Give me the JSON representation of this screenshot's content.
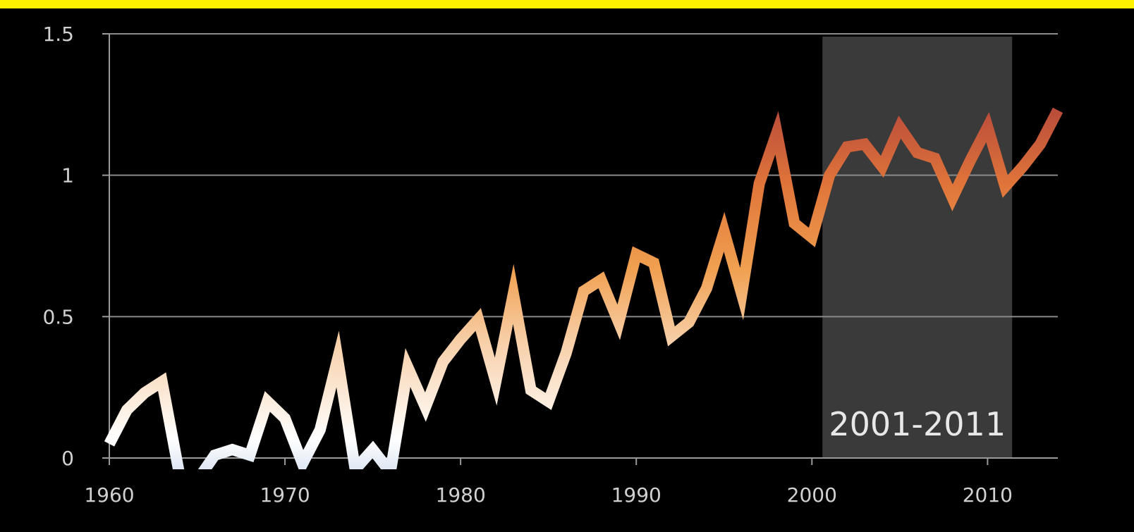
{
  "chart_data": {
    "type": "line",
    "title": "",
    "xlabel": "",
    "ylabel": "",
    "xlim": [
      1960,
      2014
    ],
    "ylim": [
      0,
      1.5
    ],
    "x_ticks": [
      1960,
      1970,
      1980,
      1990,
      2000,
      2010
    ],
    "y_ticks": [
      0,
      0.5,
      1,
      1.5
    ],
    "x_tick_labels": [
      "1960",
      "1970",
      "1980",
      "1990",
      "2000",
      "2010"
    ],
    "y_tick_labels": [
      "0",
      "0.5",
      "1",
      "1.5"
    ],
    "grid": "horizontal",
    "highlight": {
      "label": "2001-2011",
      "x_start": 2000.6,
      "x_end": 2011.4
    },
    "gradient_colors": [
      "#dfe8f4",
      "#ffffff",
      "#f7cfa8",
      "#f0a050",
      "#e0753a",
      "#b84a3a"
    ],
    "series": [
      {
        "x": [
          1960,
          1961,
          1962,
          1963,
          1964,
          1965,
          1966,
          1967,
          1968,
          1969,
          1970,
          1971,
          1972,
          1973,
          1974,
          1975,
          1976,
          1977,
          1978,
          1979,
          1980,
          1981,
          1982,
          1983,
          1984,
          1985,
          1986,
          1987,
          1988,
          1989,
          1990,
          1991,
          1992,
          1993,
          1994,
          1995,
          1996,
          1997,
          1998,
          1999,
          2000,
          2001,
          2002,
          2003,
          2004,
          2005,
          2006,
          2007,
          2008,
          2009,
          2010,
          2011,
          2012,
          2013,
          2014
        ],
        "values": [
          0.05,
          0.17,
          0.23,
          0.27,
          -0.06,
          -0.08,
          0.01,
          0.03,
          0.01,
          0.2,
          0.14,
          -0.02,
          0.1,
          0.35,
          -0.04,
          0.03,
          -0.05,
          0.32,
          0.18,
          0.34,
          0.42,
          0.49,
          0.27,
          0.58,
          0.24,
          0.2,
          0.37,
          0.59,
          0.63,
          0.48,
          0.72,
          0.69,
          0.43,
          0.48,
          0.6,
          0.8,
          0.58,
          0.97,
          1.15,
          0.83,
          0.78,
          1.0,
          1.1,
          1.11,
          1.03,
          1.17,
          1.08,
          1.06,
          0.92,
          1.05,
          1.17,
          0.96,
          1.03,
          1.11,
          1.23
        ]
      }
    ]
  }
}
